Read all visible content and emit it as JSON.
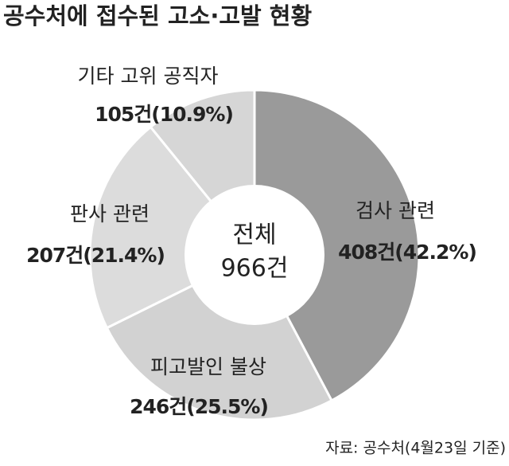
{
  "chart_data": {
    "type": "donut",
    "title": "공수처에 접수된 고소·고발 현황",
    "categories": [
      "검사 관련",
      "피고발인 불상",
      "판사 관련",
      "기타 고위 공직자"
    ],
    "values": [
      408,
      246,
      207,
      105
    ],
    "value_labels": [
      "408건(42.2%)",
      "246건(25.5%)",
      "207건(21.4%)",
      "105건(10.9%)"
    ],
    "colors": [
      "#9a9a9a",
      "#d2d2d2",
      "#dcdcdc",
      "#d6d6d6"
    ],
    "center_title": "전체",
    "center_value": "966건",
    "source": "자료: 공수처(4월23일 기준)"
  }
}
